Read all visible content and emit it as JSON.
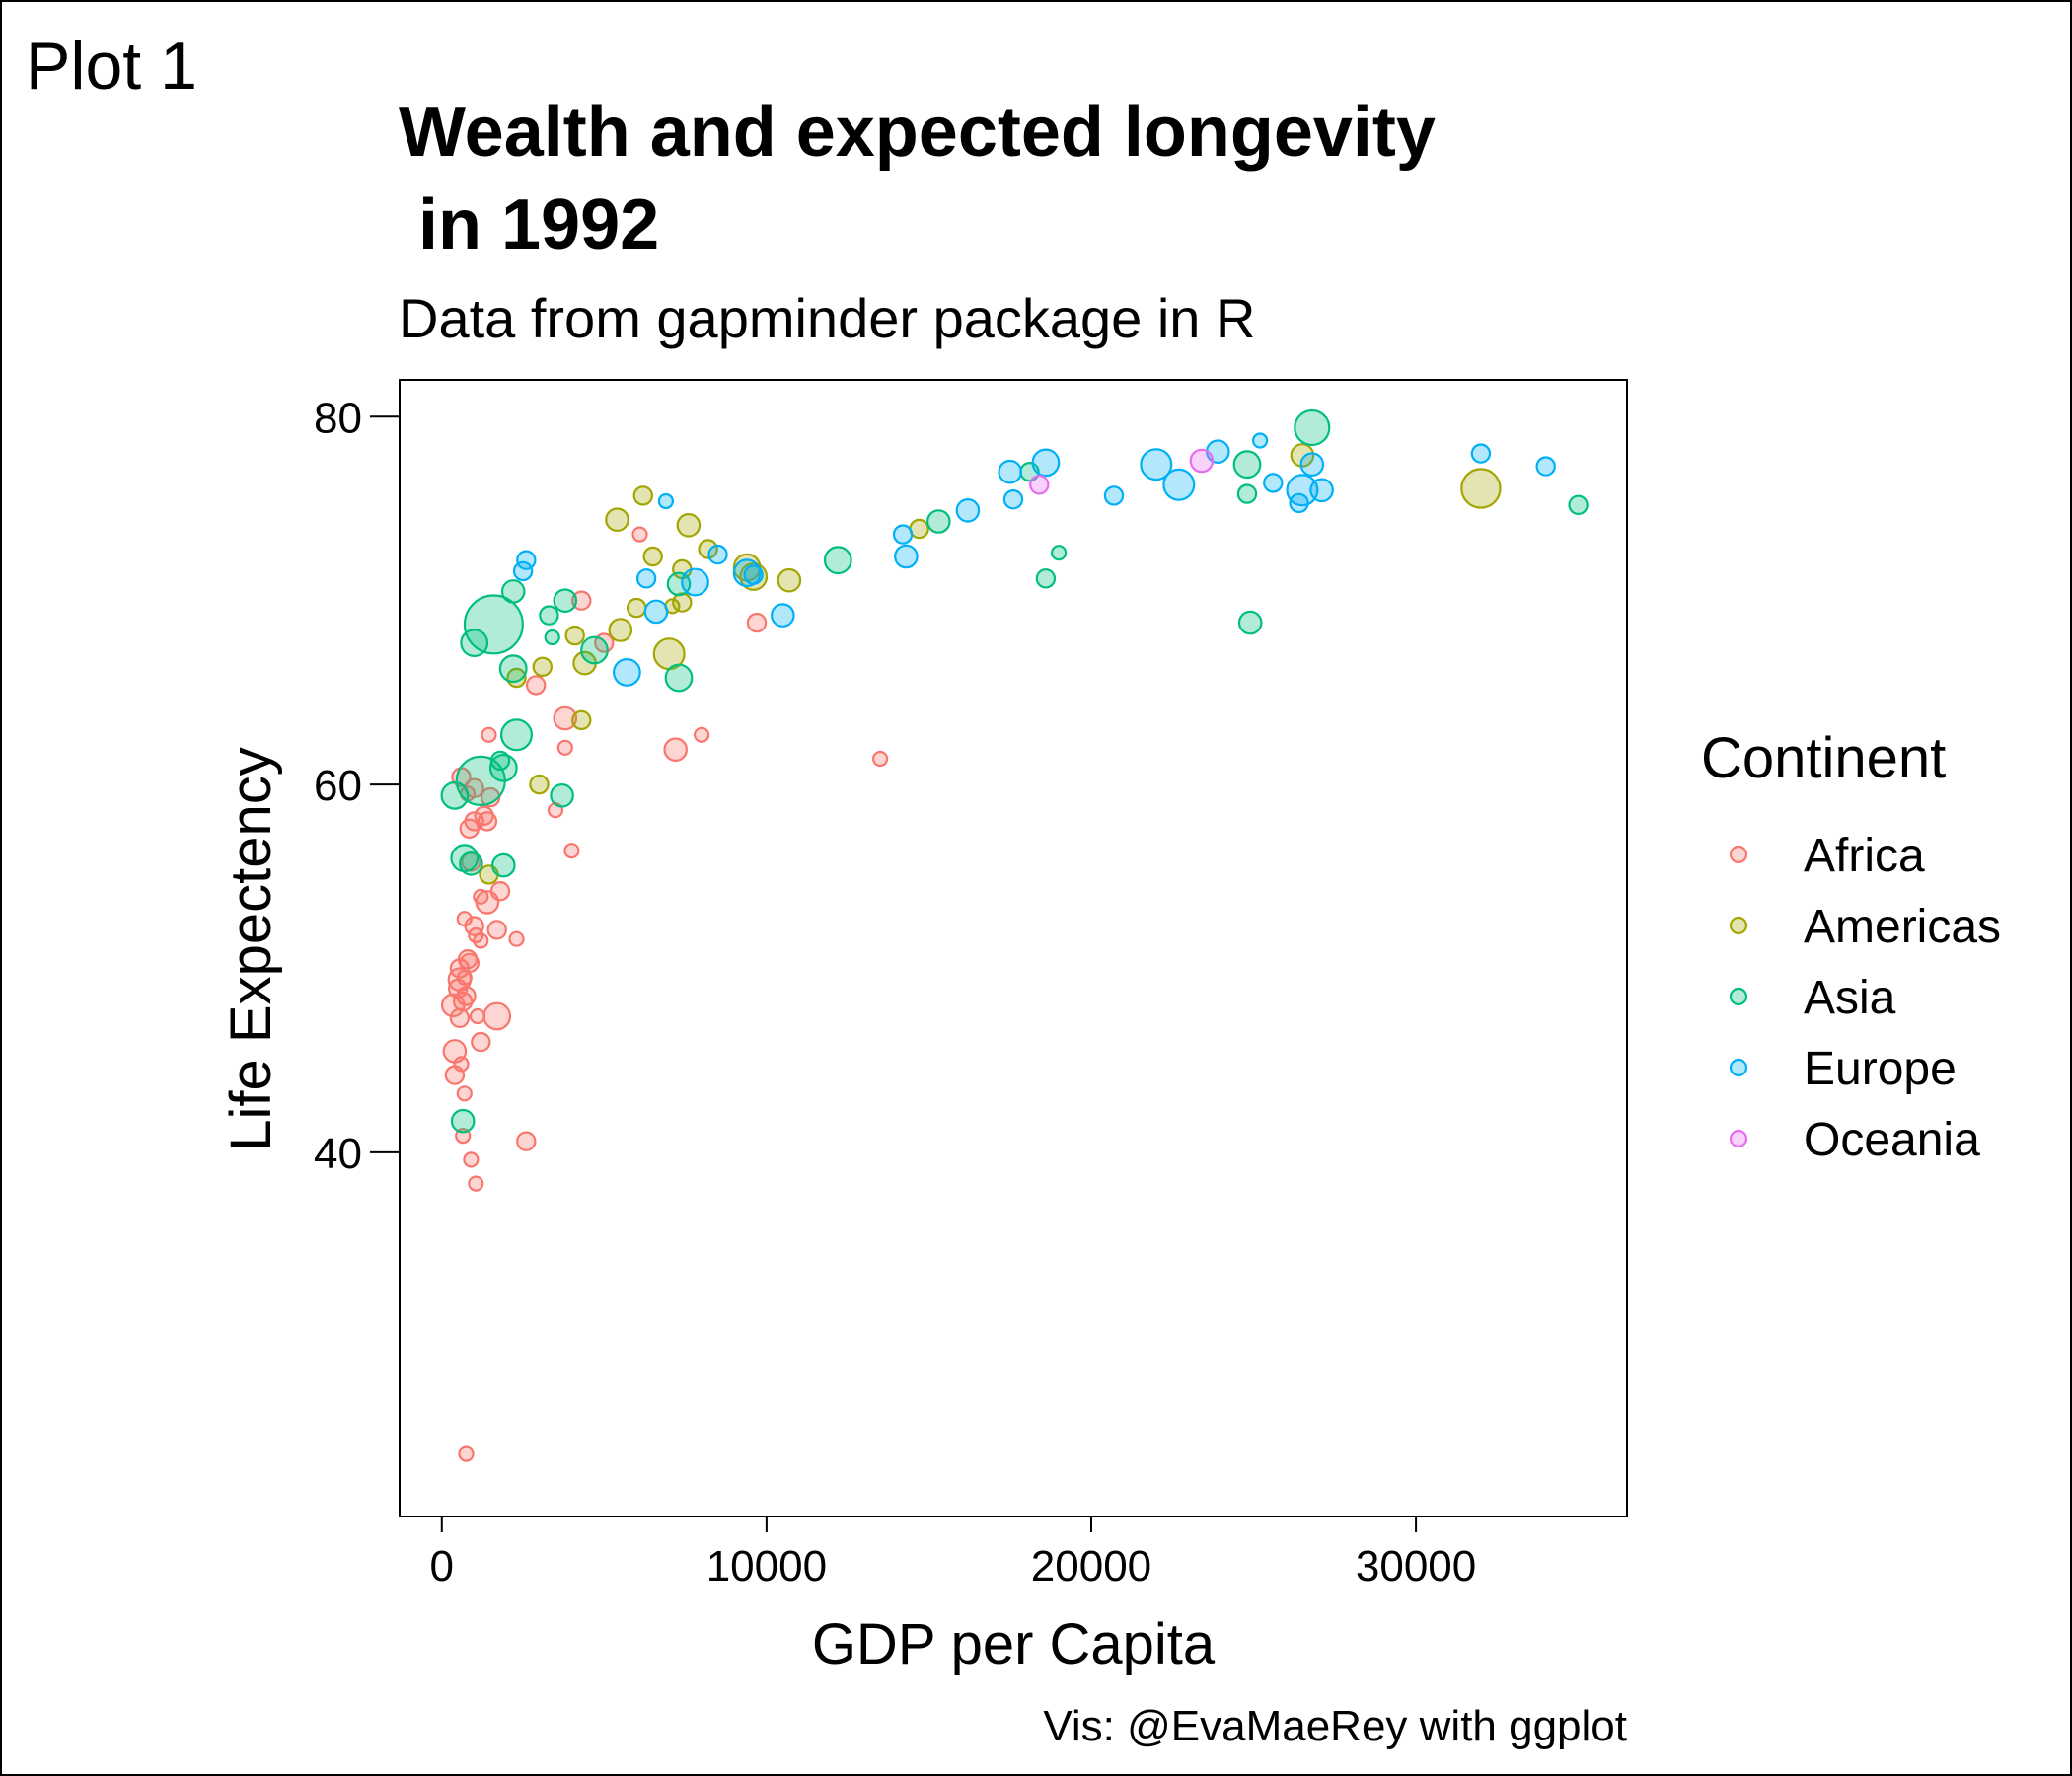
{
  "plot_label": "Plot 1",
  "chart_data": {
    "type": "scatter",
    "title_lines": [
      "Wealth and expected longevity",
      " in 1992"
    ],
    "subtitle": "Data from gapminder package in R",
    "xlabel": "GDP per Capita",
    "ylabel": "Life Expectency",
    "caption": "Vis: @EvaMaeRey with ggplot",
    "xlim": [
      -1300,
      36500
    ],
    "ylim": [
      20.2,
      82.0
    ],
    "x_ticks": [
      0,
      10000,
      20000,
      30000
    ],
    "x_tick_labels": [
      "0",
      "10000",
      "20000",
      "30000"
    ],
    "y_ticks": [
      40,
      60,
      80
    ],
    "y_tick_labels": [
      "40",
      "60",
      "80"
    ],
    "grid": false,
    "legend": {
      "title": "Continent",
      "position": "right",
      "entries": [
        {
          "name": "Africa",
          "color": "#F8766D"
        },
        {
          "name": "Americas",
          "color": "#A3A500"
        },
        {
          "name": "Asia",
          "color": "#00BF7D"
        },
        {
          "name": "Europe",
          "color": "#00B0F6"
        },
        {
          "name": "Oceania",
          "color": "#E76BF3"
        }
      ]
    },
    "point_fill_opacity": 0.3,
    "series": [
      {
        "name": "Africa",
        "color": "#F8766D",
        "points": [
          [
            750,
            23.6,
            1
          ],
          [
            2600,
            40.6,
            1.3
          ],
          [
            1050,
            38.3,
            1
          ],
          [
            900,
            39.6,
            1
          ],
          [
            650,
            40.9,
            1
          ],
          [
            700,
            43.2,
            1
          ],
          [
            400,
            44.2,
            1.3
          ],
          [
            600,
            44.8,
            1
          ],
          [
            1200,
            46.0,
            1.3
          ],
          [
            400,
            45.5,
            1.6
          ],
          [
            1700,
            47.4,
            1.9
          ],
          [
            550,
            47.3,
            1.3
          ],
          [
            1100,
            47.4,
            1
          ],
          [
            350,
            48.0,
            1.6
          ],
          [
            650,
            48.2,
            1.3
          ],
          [
            750,
            48.5,
            1.3
          ],
          [
            500,
            48.9,
            1.3
          ],
          [
            550,
            49.4,
            1.6
          ],
          [
            700,
            49.5,
            1
          ],
          [
            550,
            50.0,
            1.3
          ],
          [
            850,
            50.3,
            1.3
          ],
          [
            800,
            50.5,
            1.3
          ],
          [
            1200,
            51.5,
            1
          ],
          [
            1050,
            51.8,
            1
          ],
          [
            1700,
            52.1,
            1.3
          ],
          [
            2300,
            51.6,
            1
          ],
          [
            1000,
            52.3,
            1.3
          ],
          [
            700,
            52.7,
            1
          ],
          [
            1400,
            53.6,
            1.6
          ],
          [
            1200,
            53.9,
            1
          ],
          [
            1800,
            54.2,
            1.3
          ],
          [
            900,
            55.8,
            1.3
          ],
          [
            4000,
            56.4,
            1
          ],
          [
            1400,
            58.0,
            1.3
          ],
          [
            1000,
            58.0,
            1.3
          ],
          [
            1300,
            58.3,
            1.3
          ],
          [
            3500,
            58.6,
            1
          ],
          [
            850,
            57.6,
            1.3
          ],
          [
            1500,
            59.3,
            1.3
          ],
          [
            800,
            59.5,
            1
          ],
          [
            1000,
            59.8,
            1.3
          ],
          [
            600,
            60.4,
            1.3
          ],
          [
            3800,
            62.0,
            1
          ],
          [
            7200,
            61.9,
            1.6
          ],
          [
            8000,
            62.7,
            1
          ],
          [
            1450,
            62.7,
            1
          ],
          [
            13500,
            61.4,
            1
          ],
          [
            3800,
            63.6,
            1.6
          ],
          [
            2900,
            65.4,
            1.3
          ],
          [
            5000,
            67.7,
            1.3
          ],
          [
            4300,
            70.0,
            1.3
          ],
          [
            9700,
            68.8,
            1.3
          ],
          [
            6100,
            73.6,
            1
          ]
        ]
      },
      {
        "name": "Americas",
        "color": "#A3A500",
        "points": [
          [
            3000,
            60.0,
            1.3
          ],
          [
            1450,
            55.1,
            1.3
          ],
          [
            4300,
            63.5,
            1.3
          ],
          [
            2300,
            65.8,
            1.3
          ],
          [
            3100,
            66.4,
            1.3
          ],
          [
            4400,
            66.6,
            1.6
          ],
          [
            4100,
            68.1,
            1.3
          ],
          [
            5500,
            68.4,
            1.6
          ],
          [
            6000,
            69.6,
            1.3
          ],
          [
            7000,
            67.1,
            2.2
          ],
          [
            7400,
            69.9,
            1.3
          ],
          [
            7100,
            69.7,
            1
          ],
          [
            7400,
            71.7,
            1.3
          ],
          [
            6500,
            72.4,
            1.3
          ],
          [
            5400,
            74.4,
            1.6
          ],
          [
            6200,
            75.7,
            1.3
          ],
          [
            7600,
            74.1,
            1.6
          ],
          [
            8200,
            72.8,
            1.3
          ],
          [
            9400,
            71.8,
            1.9
          ],
          [
            9600,
            71.3,
            1.9
          ],
          [
            10700,
            71.1,
            1.6
          ],
          [
            14700,
            73.9,
            1.3
          ],
          [
            26500,
            77.9,
            1.6
          ],
          [
            32000,
            76.1,
            2.8
          ]
        ]
      },
      {
        "name": "Asia",
        "color": "#00BF7D",
        "points": [
          [
            1600,
            68.7,
            4.2
          ],
          [
            1200,
            60.2,
            3.5
          ],
          [
            400,
            59.4,
            1.9
          ],
          [
            2300,
            62.7,
            2.2
          ],
          [
            1900,
            60.9,
            1.9
          ],
          [
            1800,
            61.3,
            1.3
          ],
          [
            3700,
            59.4,
            1.6
          ],
          [
            700,
            56.0,
            1.9
          ],
          [
            900,
            55.7,
            1.6
          ],
          [
            1900,
            55.6,
            1.6
          ],
          [
            650,
            41.7,
            1.6
          ],
          [
            1000,
            67.7,
            1.9
          ],
          [
            2200,
            66.3,
            1.9
          ],
          [
            2200,
            70.5,
            1.6
          ],
          [
            3300,
            69.2,
            1.3
          ],
          [
            3800,
            70.0,
            1.6
          ],
          [
            3400,
            68.0,
            1
          ],
          [
            4700,
            67.3,
            1.9
          ],
          [
            7300,
            65.8,
            1.9
          ],
          [
            7300,
            70.9,
            1.6
          ],
          [
            12200,
            72.2,
            1.9
          ],
          [
            15300,
            74.3,
            1.6
          ],
          [
            18100,
            77.0,
            1.3
          ],
          [
            18600,
            71.2,
            1.3
          ],
          [
            19000,
            72.6,
            1
          ],
          [
            24800,
            75.8,
            1.3
          ],
          [
            24800,
            77.4,
            1.9
          ],
          [
            24900,
            68.8,
            1.6
          ],
          [
            26800,
            79.4,
            2.5
          ],
          [
            35000,
            75.2,
            1.3
          ]
        ]
      },
      {
        "name": "Europe",
        "color": "#00B0F6",
        "points": [
          [
            2500,
            71.6,
            1.3
          ],
          [
            2600,
            72.2,
            1.3
          ],
          [
            5700,
            66.1,
            1.9
          ],
          [
            6300,
            71.2,
            1.3
          ],
          [
            6600,
            69.4,
            1.6
          ],
          [
            6900,
            75.4,
            1
          ],
          [
            7800,
            71.0,
            1.9
          ],
          [
            8500,
            72.5,
            1.3
          ],
          [
            9400,
            71.5,
            1.9
          ],
          [
            9600,
            71.4,
            1.3
          ],
          [
            10500,
            69.2,
            1.6
          ],
          [
            14200,
            73.6,
            1.3
          ],
          [
            14300,
            72.4,
            1.6
          ],
          [
            16200,
            74.9,
            1.6
          ],
          [
            17500,
            77.0,
            1.6
          ],
          [
            17600,
            75.5,
            1.3
          ],
          [
            18600,
            77.5,
            1.9
          ],
          [
            20700,
            75.7,
            1.3
          ],
          [
            22000,
            77.4,
            2.2
          ],
          [
            22700,
            76.3,
            2.2
          ],
          [
            23900,
            78.1,
            1.6
          ],
          [
            25200,
            78.7,
            1
          ],
          [
            25600,
            76.4,
            1.3
          ],
          [
            26400,
            75.3,
            1.3
          ],
          [
            26500,
            76.0,
            2.2
          ],
          [
            26800,
            77.4,
            1.6
          ],
          [
            27100,
            76.0,
            1.6
          ],
          [
            32000,
            78.0,
            1.3
          ],
          [
            34000,
            77.3,
            1.3
          ]
        ]
      },
      {
        "name": "Oceania",
        "color": "#E76BF3",
        "points": [
          [
            18400,
            76.3,
            1.3
          ],
          [
            23400,
            77.6,
            1.6
          ]
        ]
      }
    ]
  }
}
